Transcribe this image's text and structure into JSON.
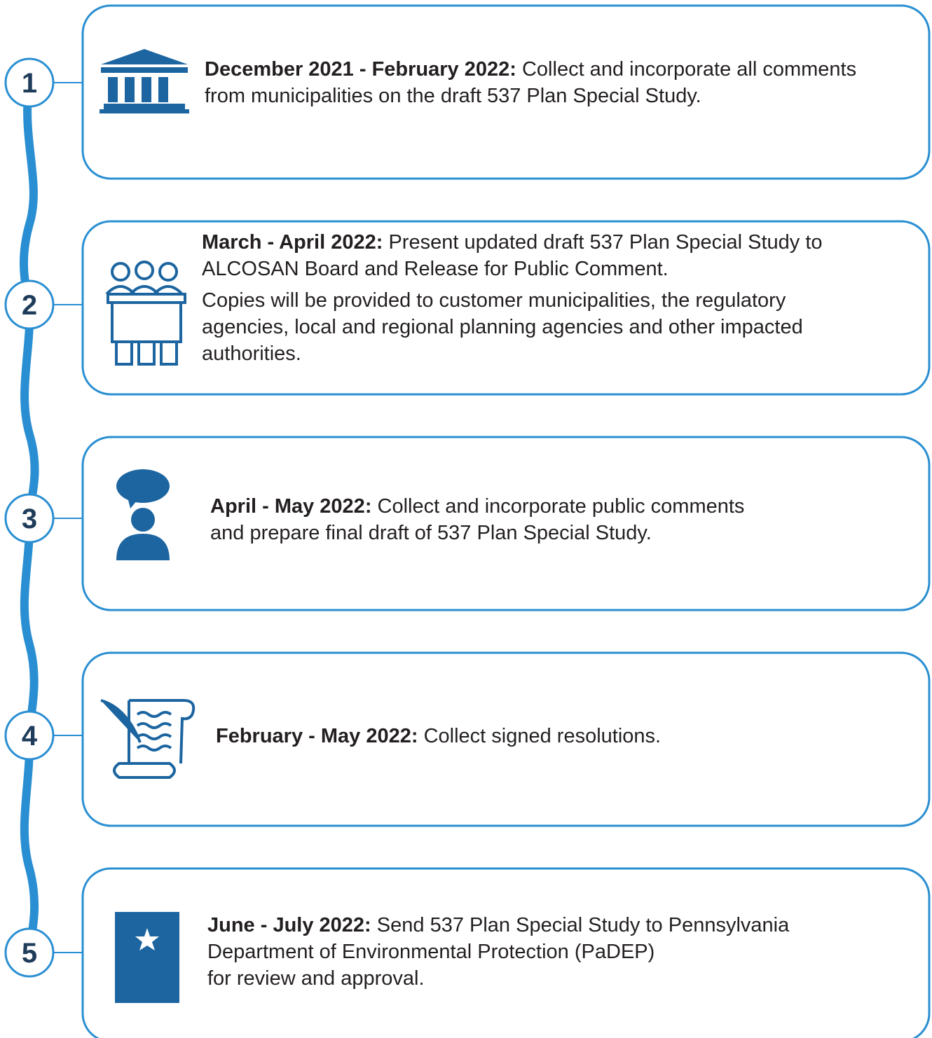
{
  "steps": [
    {
      "number": "1",
      "date": "December 2021 - February 2022:",
      "paragraphs": [
        [
          "Collect and incorporate all comments",
          "from municipalities on the draft 537 Plan Special Study."
        ]
      ]
    },
    {
      "number": "2",
      "date": "March - April 2022:",
      "paragraphs": [
        [
          "Present updated draft 537 Plan Special Study to",
          "ALCOSAN Board and Release for Public Comment."
        ],
        [
          "Copies will be provided to customer municipalities, the regulatory",
          "agencies, local and regional planning agencies and other impacted",
          "authorities."
        ]
      ]
    },
    {
      "number": "3",
      "date": "April - May 2022:",
      "paragraphs": [
        [
          "Collect and incorporate public comments",
          "and prepare final draft of 537 Plan Special Study."
        ]
      ]
    },
    {
      "number": "4",
      "date": "February - May 2022:",
      "paragraphs": [
        [
          "Collect signed resolutions."
        ]
      ]
    },
    {
      "number": "5",
      "date": "June - July 2022:",
      "paragraphs": [
        [
          "Send 537 Plan Special Study to Pennsylvania",
          "Department of Environmental Protection (PaDEP)",
          "for review and approval."
        ]
      ]
    }
  ]
}
